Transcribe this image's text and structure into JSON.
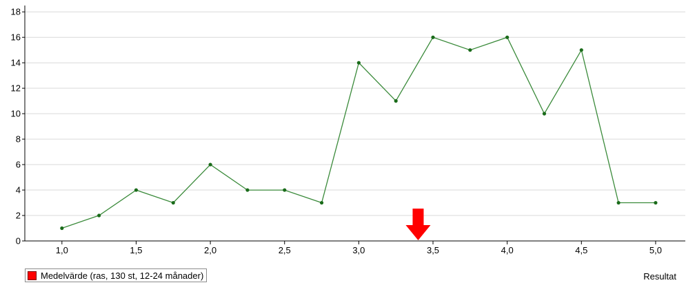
{
  "chart_data": {
    "type": "line",
    "x": [
      1.0,
      1.25,
      1.5,
      1.75,
      2.0,
      2.25,
      2.5,
      2.75,
      3.0,
      3.25,
      3.5,
      3.75,
      4.0,
      4.25,
      4.5,
      4.75,
      5.0
    ],
    "series": [
      {
        "values": [
          1,
          2,
          4,
          3,
          6,
          4,
          4,
          3,
          14,
          11,
          16,
          15,
          16,
          10,
          15,
          3,
          3
        ]
      }
    ],
    "xlim": [
      0.75,
      5.2
    ],
    "ylim": [
      0,
      18.5
    ],
    "x_ticks": [
      1.0,
      1.5,
      2.0,
      2.5,
      3.0,
      3.5,
      4.0,
      4.5,
      5.0
    ],
    "x_tick_labels": [
      "1,0",
      "1,5",
      "2,0",
      "2,5",
      "3,0",
      "3,5",
      "4,0",
      "4,5",
      "5,0"
    ],
    "y_ticks": [
      0,
      2,
      4,
      6,
      8,
      10,
      12,
      14,
      16,
      18
    ],
    "y_tick_labels": [
      "0",
      "2",
      "4",
      "6",
      "8",
      "10",
      "12",
      "14",
      "16",
      "18"
    ],
    "xlabel": "Resultat",
    "ylabel": "",
    "grid": "horizontal",
    "marker": {
      "x": 3.4,
      "label": "Medelvärde (ras, 130 st, 12-24 månader)"
    },
    "legend_placement": "bottom-left",
    "colors": {
      "line": "#3a8a3a",
      "point": "#1a6b1a",
      "marker": "#ff0000",
      "grid": "#d9d9d9"
    }
  }
}
